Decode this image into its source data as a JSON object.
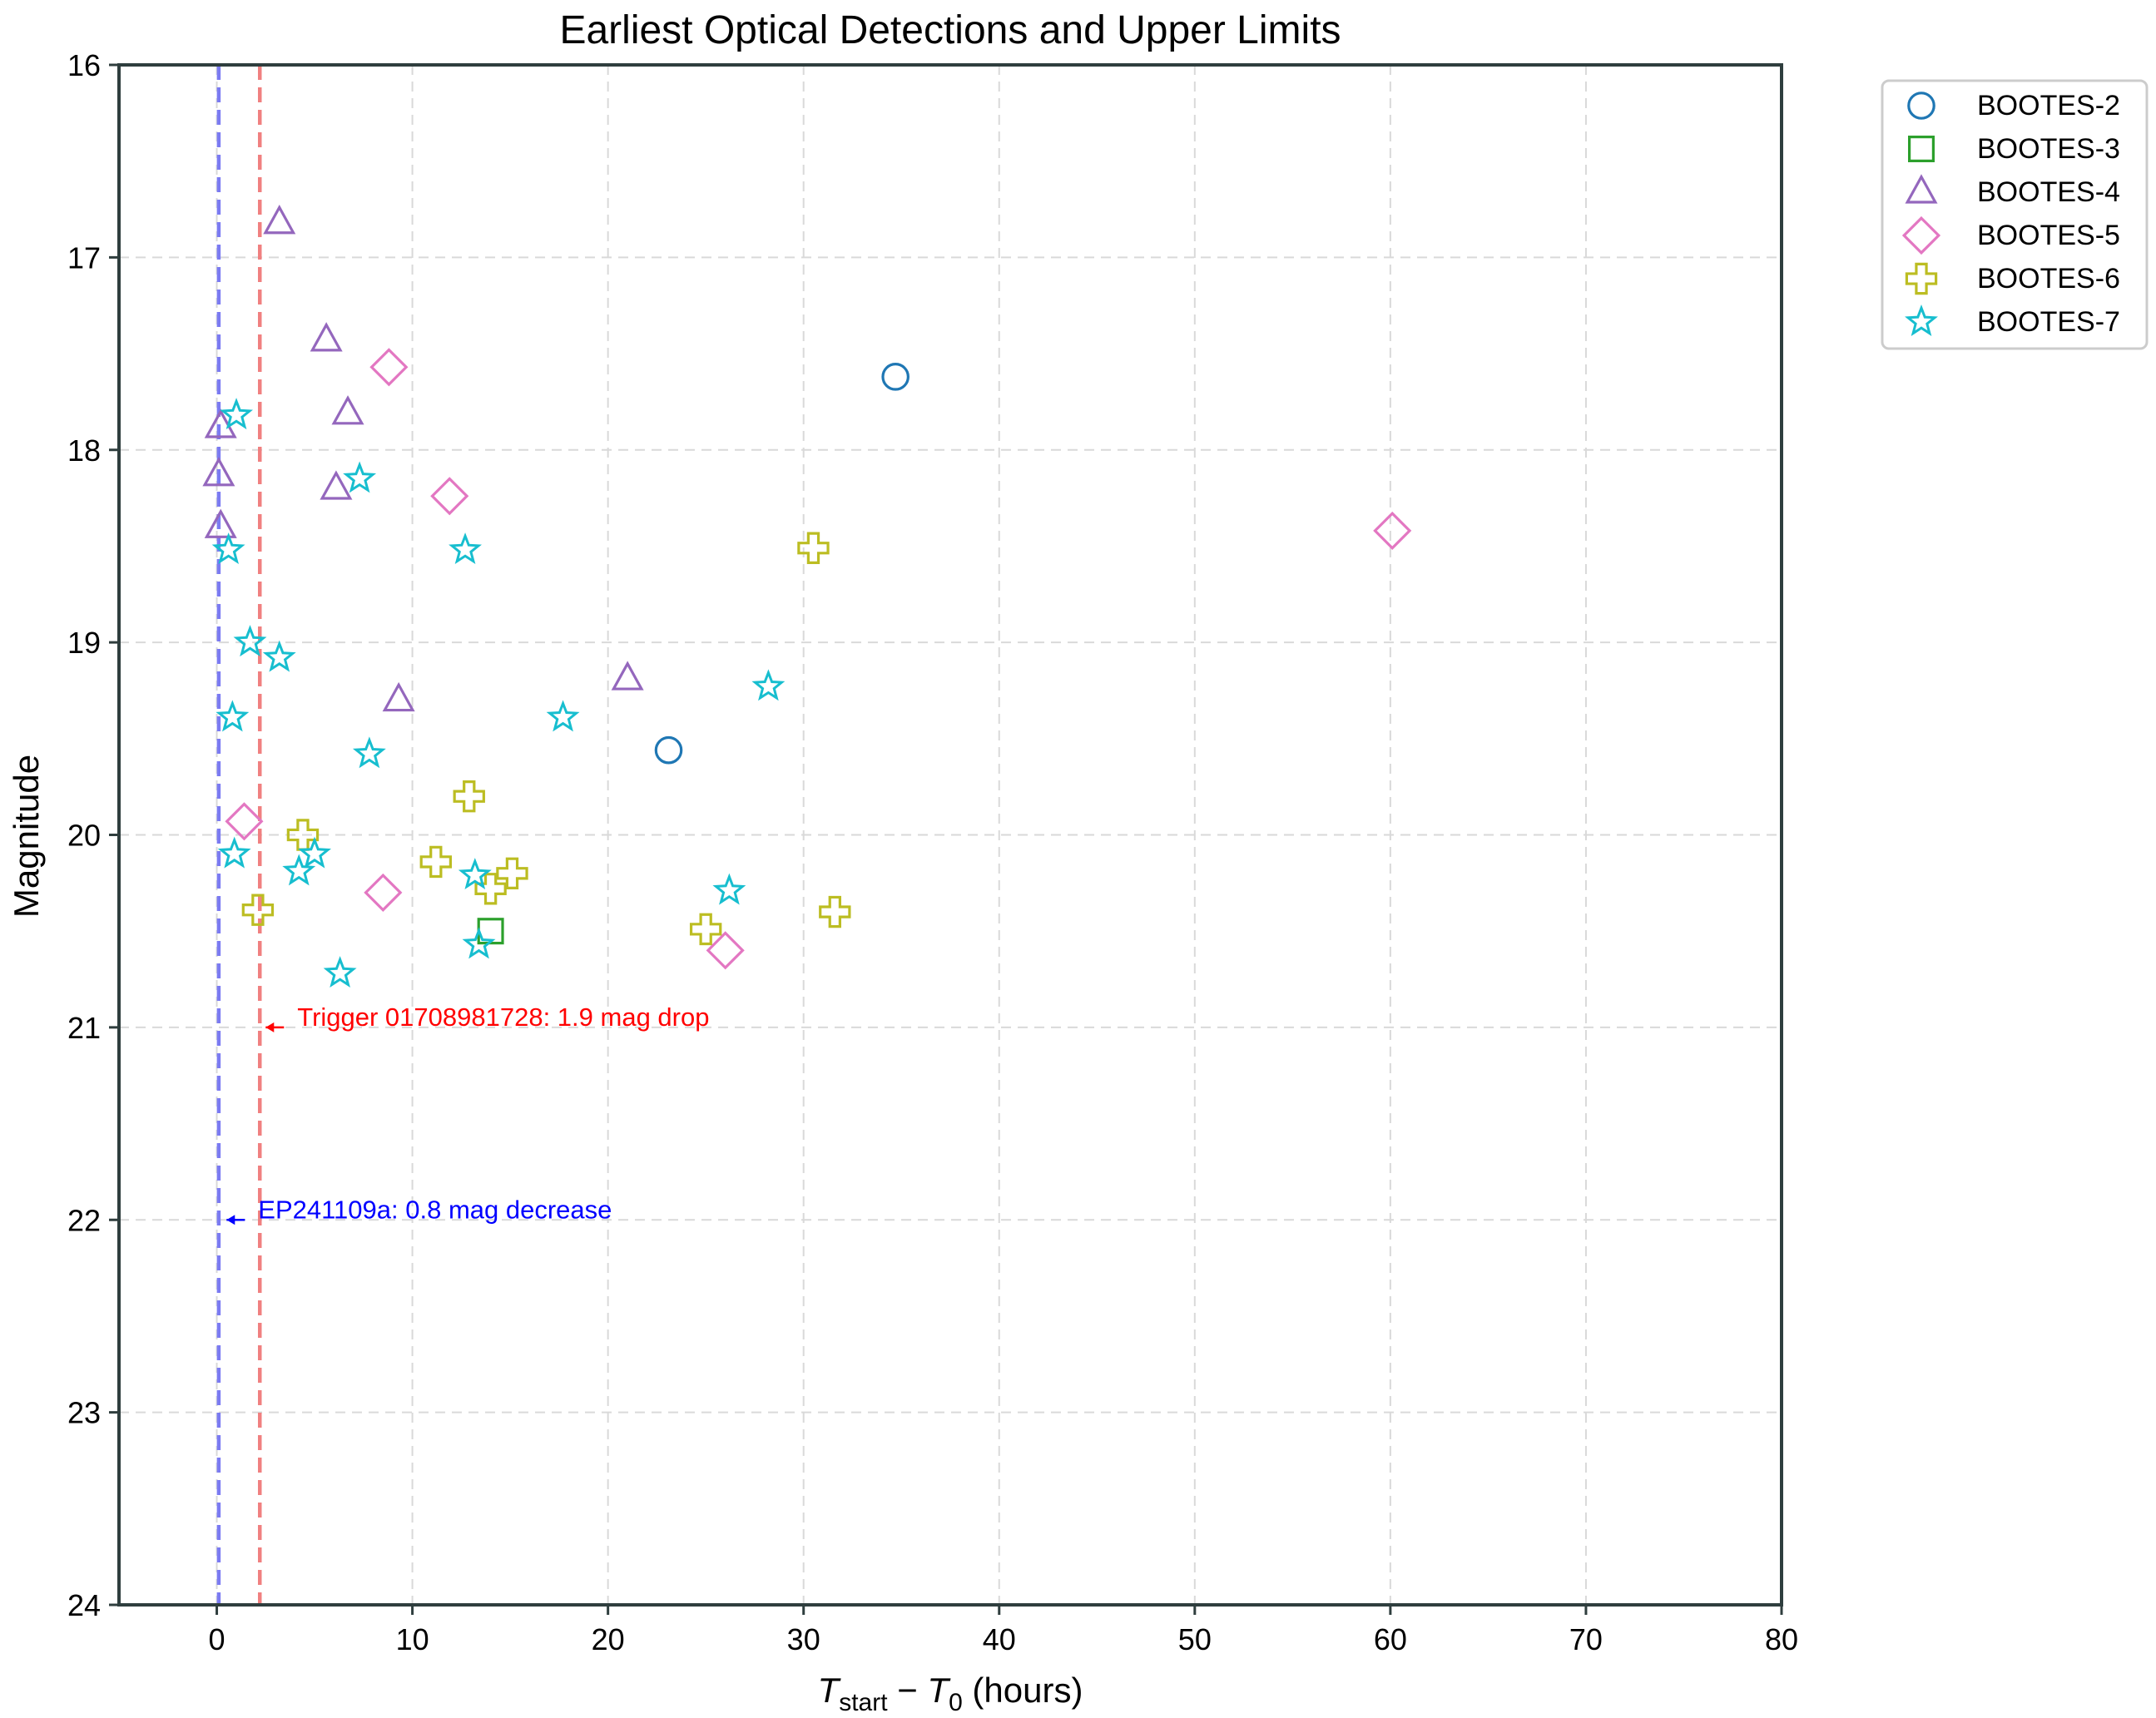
{
  "chart_data": {
    "type": "scatter",
    "title": "Earliest Optical Detections and Upper Limits",
    "xlabel": {
      "main": "T",
      "sub1": "start",
      "minus": " − ",
      "main2": "T",
      "sub2": "0",
      "unit": " (hours)"
    },
    "ylabel": "Magnitude",
    "xlim": [
      -5,
      80
    ],
    "ylim": [
      16,
      24
    ],
    "y_inverted": true,
    "grid": true,
    "xticks": [
      0,
      10,
      20,
      30,
      40,
      50,
      60,
      70,
      80
    ],
    "yticks": [
      16,
      17,
      18,
      19,
      20,
      21,
      22,
      23,
      24
    ],
    "legend_position": "outside-top-right",
    "series": [
      {
        "name": "BOOTES-2",
        "marker": "circle",
        "color": "#1f77b4",
        "points": [
          [
            34.7,
            17.62
          ],
          [
            23.1,
            19.56
          ]
        ]
      },
      {
        "name": "BOOTES-3",
        "marker": "square",
        "color": "#2ca02c",
        "points": [
          [
            14.0,
            20.5
          ]
        ]
      },
      {
        "name": "BOOTES-4",
        "marker": "triangle",
        "color": "#9467bd",
        "points": [
          [
            3.2,
            16.82
          ],
          [
            5.6,
            17.43
          ],
          [
            6.7,
            17.81
          ],
          [
            0.2,
            17.88
          ],
          [
            0.1,
            18.13
          ],
          [
            6.1,
            18.2
          ],
          [
            0.2,
            18.4
          ],
          [
            9.3,
            19.3
          ],
          [
            21.0,
            19.19
          ]
        ]
      },
      {
        "name": "BOOTES-5",
        "marker": "diamond",
        "color": "#e377c2",
        "points": [
          [
            8.8,
            17.57
          ],
          [
            11.9,
            18.24
          ],
          [
            60.1,
            18.42
          ],
          [
            1.4,
            19.93
          ],
          [
            8.5,
            20.3
          ],
          [
            26.0,
            20.6
          ]
        ]
      },
      {
        "name": "BOOTES-6",
        "marker": "plus",
        "color": "#bcbd22",
        "points": [
          [
            30.5,
            18.51
          ],
          [
            12.9,
            19.8
          ],
          [
            4.4,
            20.0
          ],
          [
            11.2,
            20.14
          ],
          [
            15.1,
            20.2
          ],
          [
            14.0,
            20.28
          ],
          [
            2.1,
            20.39
          ],
          [
            31.6,
            20.4
          ],
          [
            25.0,
            20.49
          ]
        ]
      },
      {
        "name": "BOOTES-7",
        "marker": "star",
        "color": "#17becf",
        "points": [
          [
            1.0,
            17.82
          ],
          [
            7.3,
            18.15
          ],
          [
            0.6,
            18.52
          ],
          [
            12.7,
            18.52
          ],
          [
            1.7,
            19.0
          ],
          [
            3.2,
            19.08
          ],
          [
            28.2,
            19.23
          ],
          [
            0.8,
            19.39
          ],
          [
            17.7,
            19.39
          ],
          [
            7.8,
            19.58
          ],
          [
            0.9,
            20.1
          ],
          [
            5.0,
            20.1
          ],
          [
            4.2,
            20.19
          ],
          [
            13.2,
            20.21
          ],
          [
            26.2,
            20.29
          ],
          [
            13.4,
            20.57
          ],
          [
            6.3,
            20.72
          ]
        ]
      }
    ],
    "vlines": [
      {
        "x": 0.1,
        "color": "#7b7bf2",
        "label": "EP241109a"
      },
      {
        "x": 2.2,
        "color": "#f08080",
        "label": "Trigger 01708981728"
      }
    ],
    "annotations": [
      {
        "text": "Trigger 01708981728: 1.9 mag drop",
        "x": 2.5,
        "y": 21.0,
        "color": "#ff0000"
      },
      {
        "text": "EP241109a: 0.8 mag decrease",
        "x": 0.5,
        "y": 22.0,
        "color": "#0000ff"
      }
    ]
  }
}
